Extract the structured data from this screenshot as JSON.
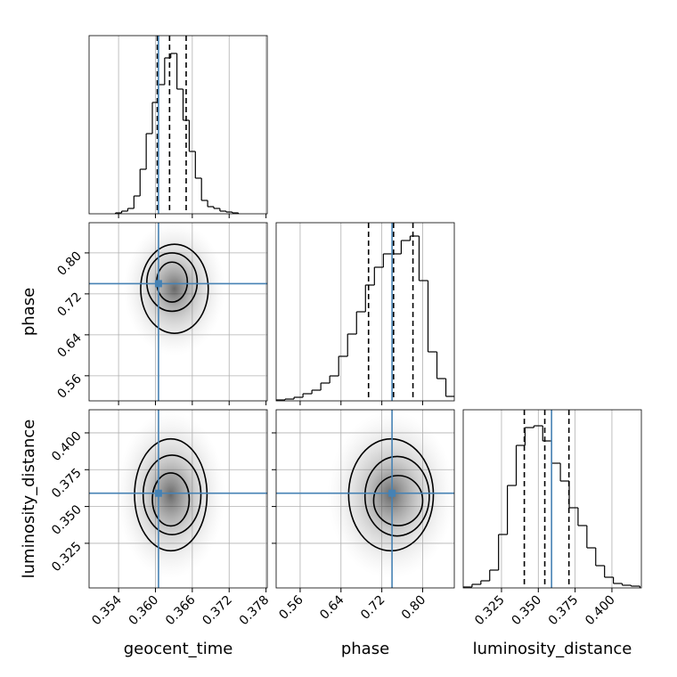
{
  "chart_data": [
    {
      "type": "histogram",
      "xlabel": null,
      "bins": [
        0.3535,
        0.3545,
        0.3555,
        0.3565,
        0.3575,
        0.3585,
        0.3595,
        0.3605,
        0.3615,
        0.3625,
        0.3635,
        0.3645,
        0.3655,
        0.3665,
        0.3675,
        0.3685,
        0.3695,
        0.3705,
        0.3715,
        0.3725,
        0.3735
      ],
      "counts": [
        1,
        3,
        6,
        20,
        50,
        90,
        125,
        145,
        175,
        180,
        140,
        105,
        70,
        40,
        15,
        8,
        6,
        3,
        2,
        1
      ],
      "quantiles": [
        0.3603,
        0.3623,
        0.365
      ],
      "truth": 0.3605,
      "xlim": [
        0.3492,
        0.3782
      ],
      "ylim": [
        0,
        200
      ],
      "xticks": [
        0.354,
        {
          "value": 0.36,
          "label": "0.360"
        },
        0.366,
        0.372,
        0.378
      ],
      "color": "#000000",
      "truth_color": "#4682b4",
      "grid": true
    },
    {
      "type": "contour",
      "ylabel": "phase",
      "x_truth": 0.3605,
      "y_truth": 0.74,
      "contours": [
        {
          "cx": 0.3631,
          "cy": 0.73,
          "rx": 0.0055,
          "ry": 0.087
        },
        {
          "cx": 0.3627,
          "cy": 0.743,
          "rx": 0.0041,
          "ry": 0.057
        },
        {
          "cx": 0.3627,
          "cy": 0.743,
          "rx": 0.0025,
          "ry": 0.039
        }
      ],
      "xlim": [
        0.3492,
        0.3782
      ],
      "ylim": [
        0.511,
        0.859
      ],
      "xticks": [
        0.354,
        {
          "value": 0.36,
          "label": "0.360"
        },
        0.366,
        0.372,
        0.378
      ],
      "yticks": [
        0.56,
        0.64,
        0.72,
        {
          "value": 0.8,
          "label": "0.80"
        }
      ],
      "color": "#000000",
      "truth_color": "#4682b4",
      "grid": true
    },
    {
      "type": "histogram",
      "xlabel": null,
      "bins": [
        0.513,
        0.5305,
        0.548,
        0.5655,
        0.583,
        0.6005,
        0.618,
        0.6355,
        0.653,
        0.6705,
        0.688,
        0.7055,
        0.723,
        0.7405,
        0.758,
        0.7755,
        0.793,
        0.8105,
        0.828,
        0.8455,
        0.863
      ],
      "counts": [
        1,
        2,
        4,
        8,
        12,
        20,
        28,
        50,
        75,
        100,
        130,
        150,
        165,
        165,
        180,
        185,
        135,
        55,
        25,
        5
      ],
      "quantiles": [
        0.694,
        0.743,
        0.781
      ],
      "truth": 0.74,
      "xlim": [
        0.513,
        0.862
      ],
      "ylim": [
        0,
        200
      ],
      "xticks": [
        0.56,
        0.64,
        0.72,
        {
          "value": 0.8,
          "label": "0.80"
        }
      ],
      "color": "#000000",
      "truth_color": "#4682b4",
      "grid": true
    },
    {
      "type": "contour",
      "xlabel": "geocent_time",
      "ylabel": "luminosity_distance",
      "x_truth": 0.3605,
      "y_truth": 0.359,
      "contours": [
        {
          "cx": 0.3625,
          "cy": 0.3579,
          "rx": 0.0059,
          "ry": 0.038
        },
        {
          "cx": 0.3627,
          "cy": 0.3579,
          "rx": 0.0047,
          "ry": 0.027
        },
        {
          "cx": 0.3625,
          "cy": 0.3548,
          "rx": 0.003,
          "ry": 0.018
        }
      ],
      "xlim": [
        0.3492,
        0.3782
      ],
      "ylim": [
        0.2947,
        0.4157
      ],
      "xticks": [
        0.354,
        {
          "value": 0.36,
          "label": "0.360"
        },
        0.366,
        0.372,
        0.378
      ],
      "yticks": [
        0.325,
        {
          "value": 0.35,
          "label": "0.350"
        },
        0.375,
        {
          "value": 0.4,
          "label": "0.400"
        }
      ],
      "color": "#000000",
      "truth_color": "#4682b4",
      "grid": true
    },
    {
      "type": "contour",
      "xlabel": "phase",
      "x_truth": 0.74,
      "y_truth": 0.359,
      "contours": [
        {
          "cx": 0.738,
          "cy": 0.3579,
          "rx": 0.083,
          "ry": 0.038
        },
        {
          "cx": 0.75,
          "cy": 0.357,
          "rx": 0.063,
          "ry": 0.027
        },
        {
          "cx": 0.752,
          "cy": 0.354,
          "rx": 0.048,
          "ry": 0.017
        }
      ],
      "xlim": [
        0.513,
        0.862
      ],
      "ylim": [
        0.2947,
        0.4157
      ],
      "xticks": [
        0.56,
        0.64,
        0.72,
        {
          "value": 0.8,
          "label": "0.80"
        }
      ],
      "yticks": [
        0.325,
        {
          "value": 0.35,
          "label": "0.350"
        },
        0.375,
        {
          "value": 0.4,
          "label": "0.400"
        }
      ],
      "color": "#000000",
      "truth_color": "#4682b4",
      "grid": true
    },
    {
      "type": "histogram",
      "xlabel": "luminosity_distance",
      "bins": [
        0.299,
        0.305,
        0.311,
        0.317,
        0.323,
        0.329,
        0.335,
        0.341,
        0.347,
        0.353,
        0.359,
        0.365,
        0.371,
        0.377,
        0.383,
        0.389,
        0.395,
        0.401,
        0.407,
        0.413,
        0.419
      ],
      "counts": [
        1,
        4,
        8,
        20,
        60,
        115,
        160,
        180,
        182,
        165,
        140,
        120,
        90,
        70,
        45,
        25,
        12,
        5,
        3,
        2
      ],
      "quantiles": [
        0.3405,
        0.3544,
        0.3708
      ],
      "truth": 0.359,
      "xlim": [
        0.299,
        0.42
      ],
      "ylim": [
        0,
        200
      ],
      "xticks": [
        0.325,
        {
          "value": 0.35,
          "label": "0.350"
        },
        0.375,
        {
          "value": 0.4,
          "label": "0.400"
        }
      ],
      "color": "#000000",
      "truth_color": "#4682b4",
      "grid": true
    }
  ]
}
